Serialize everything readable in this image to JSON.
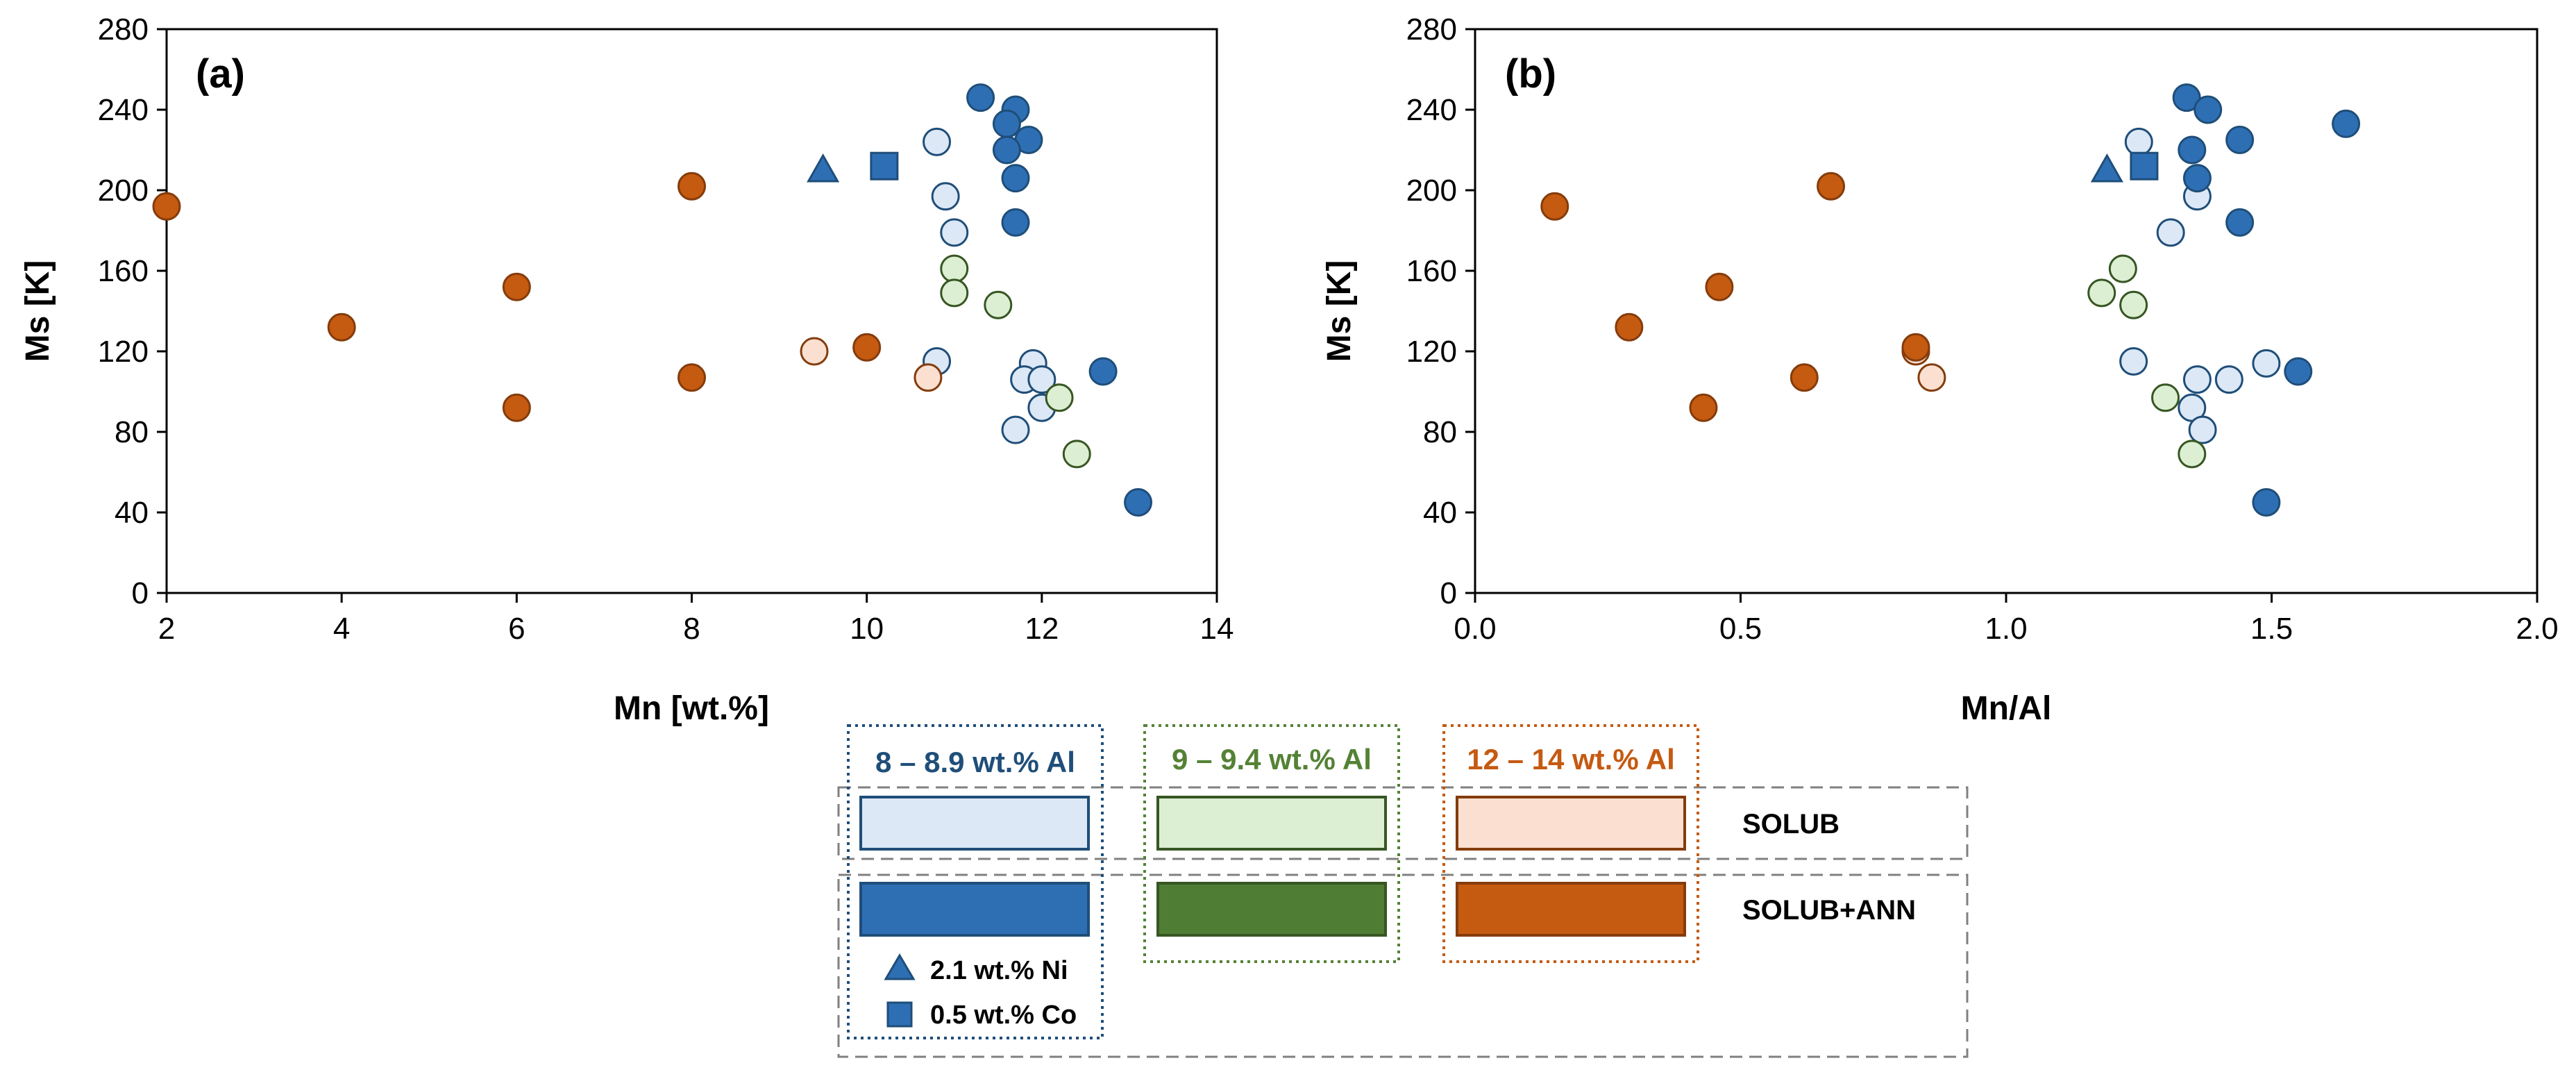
{
  "colors": {
    "light_blue": "#dce8f5",
    "dark_blue": "#2e6fb4",
    "blue_edge": "#1f4e79",
    "light_green": "#dcefd3",
    "dark_green": "#4f7d34",
    "green_edge": "#375623",
    "light_orange": "#fbe0d2",
    "dark_orange": "#c55a11",
    "orange_edge": "#843c0c"
  },
  "chart_data": [
    {
      "type": "scatter",
      "panel_label": "(a)",
      "xlabel": "Mn [wt.%]",
      "ylabel": "Ms [K]",
      "xlim": [
        2,
        14
      ],
      "ylim": [
        0,
        280
      ],
      "x_ticks": [
        "2",
        "4",
        "6",
        "8",
        "10",
        "12",
        "14"
      ],
      "y_ticks": [
        "0",
        "40",
        "80",
        "120",
        "160",
        "200",
        "240",
        "280"
      ],
      "series": [
        {
          "name": "8 – 8.9 wt.% Al SOLUB",
          "group": "blue",
          "condition": "SOLUB",
          "marker": "circle",
          "points": [
            [
              10.8,
              224
            ],
            [
              10.9,
              197
            ],
            [
              11.0,
              179
            ],
            [
              10.8,
              115
            ],
            [
              11.9,
              114
            ],
            [
              11.8,
              106
            ],
            [
              12.0,
              106
            ],
            [
              12.0,
              92
            ],
            [
              11.7,
              81
            ]
          ]
        },
        {
          "name": "8 – 8.9 wt.% Al SOLUB+ANN",
          "group": "blue",
          "condition": "SOLUB+ANN",
          "marker": "circle",
          "points": [
            [
              11.3,
              246
            ],
            [
              11.7,
              240
            ],
            [
              11.6,
              233
            ],
            [
              11.85,
              225
            ],
            [
              11.6,
              220
            ],
            [
              11.7,
              206
            ],
            [
              11.7,
              184
            ],
            [
              12.7,
              110
            ],
            [
              13.1,
              45
            ]
          ]
        },
        {
          "name": "2.1 wt.% Ni",
          "group": "blue",
          "condition": "SOLUB+ANN",
          "marker": "triangle",
          "points": [
            [
              9.5,
              210
            ]
          ]
        },
        {
          "name": "0.5 wt.% Co",
          "group": "blue",
          "condition": "SOLUB+ANN",
          "marker": "square",
          "points": [
            [
              10.2,
              212
            ]
          ]
        },
        {
          "name": "9 – 9.4 wt.% Al SOLUB",
          "group": "green",
          "condition": "SOLUB",
          "marker": "circle",
          "points": [
            [
              11.0,
              161
            ],
            [
              11.0,
              149
            ],
            [
              11.5,
              143
            ],
            [
              12.2,
              97
            ],
            [
              12.4,
              69
            ]
          ]
        },
        {
          "name": "12 – 14 wt.% Al SOLUB",
          "group": "orange",
          "condition": "SOLUB",
          "marker": "circle",
          "points": [
            [
              9.4,
              120
            ],
            [
              10.7,
              107
            ]
          ]
        },
        {
          "name": "12 – 14 wt.% Al SOLUB+ANN",
          "group": "orange",
          "condition": "SOLUB+ANN",
          "marker": "circle",
          "points": [
            [
              2.0,
              192
            ],
            [
              4.0,
              132
            ],
            [
              6.0,
              152
            ],
            [
              6.0,
              92
            ],
            [
              8.0,
              202
            ],
            [
              8.0,
              107
            ],
            [
              10.0,
              122
            ]
          ]
        }
      ]
    },
    {
      "type": "scatter",
      "panel_label": "(b)",
      "xlabel": "Mn/Al",
      "ylabel": "Ms [K]",
      "xlim": [
        0.0,
        2.0
      ],
      "ylim": [
        0,
        280
      ],
      "x_ticks": [
        "0.0",
        "0.5",
        "1.0",
        "1.5",
        "2.0"
      ],
      "y_ticks": [
        "0",
        "40",
        "80",
        "120",
        "160",
        "200",
        "240",
        "280"
      ],
      "series": [
        {
          "name": "8 – 8.9 wt.% Al SOLUB",
          "group": "blue",
          "condition": "SOLUB",
          "marker": "circle",
          "points": [
            [
              1.25,
              224
            ],
            [
              1.36,
              197
            ],
            [
              1.31,
              179
            ],
            [
              1.24,
              115
            ],
            [
              1.49,
              114
            ],
            [
              1.42,
              106
            ],
            [
              1.36,
              106
            ],
            [
              1.35,
              92
            ],
            [
              1.37,
              81
            ]
          ]
        },
        {
          "name": "8 – 8.9 wt.% Al SOLUB+ANN",
          "group": "blue",
          "condition": "SOLUB+ANN",
          "marker": "circle",
          "points": [
            [
              1.34,
              246
            ],
            [
              1.38,
              240
            ],
            [
              1.64,
              233
            ],
            [
              1.44,
              225
            ],
            [
              1.35,
              220
            ],
            [
              1.36,
              206
            ],
            [
              1.44,
              184
            ],
            [
              1.55,
              110
            ],
            [
              1.49,
              45
            ]
          ]
        },
        {
          "name": "2.1 wt.% Ni",
          "group": "blue",
          "condition": "SOLUB+ANN",
          "marker": "triangle",
          "points": [
            [
              1.19,
              210
            ]
          ]
        },
        {
          "name": "0.5 wt.% Co",
          "group": "blue",
          "condition": "SOLUB+ANN",
          "marker": "square",
          "points": [
            [
              1.26,
              212
            ]
          ]
        },
        {
          "name": "9 – 9.4 wt.% Al SOLUB",
          "group": "green",
          "condition": "SOLUB",
          "marker": "circle",
          "points": [
            [
              1.22,
              161
            ],
            [
              1.18,
              149
            ],
            [
              1.24,
              143
            ],
            [
              1.3,
              97
            ],
            [
              1.35,
              69
            ]
          ]
        },
        {
          "name": "12 – 14 wt.% Al SOLUB",
          "group": "orange",
          "condition": "SOLUB",
          "marker": "circle",
          "points": [
            [
              0.83,
              120
            ],
            [
              0.86,
              107
            ]
          ]
        },
        {
          "name": "12 – 14 wt.% Al SOLUB+ANN",
          "group": "orange",
          "condition": "SOLUB+ANN",
          "marker": "circle",
          "points": [
            [
              0.15,
              192
            ],
            [
              0.29,
              132
            ],
            [
              0.46,
              152
            ],
            [
              0.43,
              92
            ],
            [
              0.67,
              202
            ],
            [
              0.62,
              107
            ],
            [
              0.83,
              122
            ]
          ]
        }
      ]
    }
  ],
  "legend": {
    "groups": [
      {
        "key": "blue",
        "label": "8 – 8.9 wt.% Al",
        "color": "#2e6fb4",
        "light": "#dce8f5",
        "edge": "#1f4e79"
      },
      {
        "key": "green",
        "label": "9 – 9.4 wt.% Al",
        "color": "#4f7d34",
        "light": "#dcefd3",
        "edge": "#375623"
      },
      {
        "key": "orange",
        "label": "12 – 14 wt.% Al",
        "color": "#c55a11",
        "light": "#fbe0d2",
        "edge": "#843c0c"
      }
    ],
    "rows": [
      "SOLUB",
      "SOLUB+ANN"
    ],
    "markers": {
      "ni_label": "2.1 wt.% Ni",
      "co_label": "0.5 wt.% Co"
    }
  }
}
